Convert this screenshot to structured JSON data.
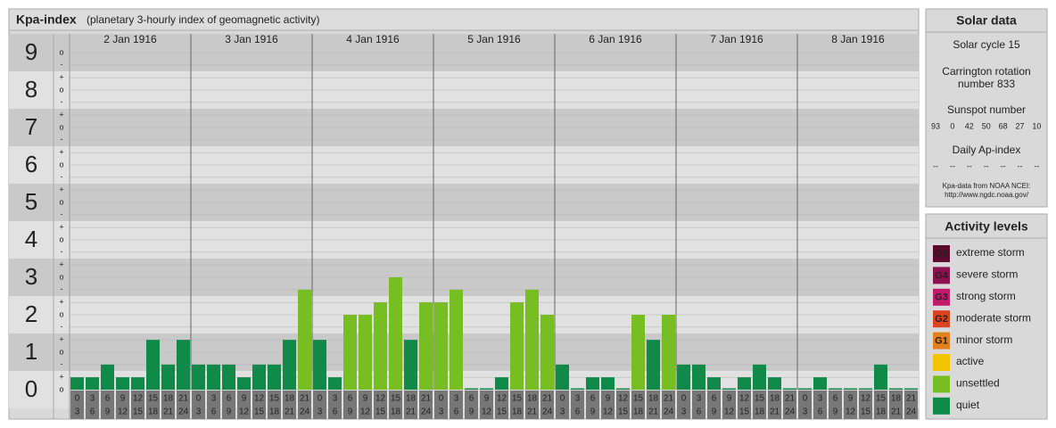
{
  "chart_data": {
    "type": "bar",
    "title": "Kpa-index",
    "subtitle": "(planetary 3-hourly index of geomagnetic activity)",
    "ylim": [
      -0.5,
      9.5
    ],
    "yticks": [
      0,
      1,
      2,
      3,
      4,
      5,
      6,
      7,
      8,
      9
    ],
    "minor_ticks": [
      {
        "value": 0,
        "label": "o"
      },
      {
        "value": 0.33,
        "label": "+"
      },
      {
        "value": 0.67,
        "label": "-"
      },
      {
        "value": 1,
        "label": "o"
      },
      {
        "value": 1.33,
        "label": "+"
      },
      {
        "value": 1.67,
        "label": "-"
      },
      {
        "value": 2,
        "label": "o"
      },
      {
        "value": 2.33,
        "label": "+"
      },
      {
        "value": 2.67,
        "label": "-"
      },
      {
        "value": 3,
        "label": "o"
      },
      {
        "value": 3.33,
        "label": "+"
      },
      {
        "value": 3.67,
        "label": "-"
      },
      {
        "value": 4,
        "label": "o"
      },
      {
        "value": 4.33,
        "label": "+"
      },
      {
        "value": 4.67,
        "label": "-"
      },
      {
        "value": 5,
        "label": "o"
      },
      {
        "value": 5.33,
        "label": "+"
      },
      {
        "value": 5.67,
        "label": "-"
      },
      {
        "value": 6,
        "label": "o"
      },
      {
        "value": 6.33,
        "label": "+"
      },
      {
        "value": 6.67,
        "label": "-"
      },
      {
        "value": 7,
        "label": "o"
      },
      {
        "value": 7.33,
        "label": "+"
      },
      {
        "value": 7.67,
        "label": "-"
      },
      {
        "value": 8,
        "label": "o"
      },
      {
        "value": 8.33,
        "label": "+"
      },
      {
        "value": 8.67,
        "label": "-"
      },
      {
        "value": 9,
        "label": "o"
      }
    ],
    "hours": [
      [
        "0",
        "3"
      ],
      [
        "3",
        "6"
      ],
      [
        "6",
        "9"
      ],
      [
        "9",
        "12"
      ],
      [
        "12",
        "15"
      ],
      [
        "15",
        "18"
      ],
      [
        "18",
        "21"
      ],
      [
        "21",
        "24"
      ]
    ],
    "days": [
      {
        "label": "2 Jan 1916",
        "values": [
          0.33,
          0.33,
          0.67,
          0.33,
          0.33,
          1.33,
          0.67,
          1.33
        ],
        "colors": [
          "#0f8a48",
          "#0f8a48",
          "#0f8a48",
          "#0f8a48",
          "#0f8a48",
          "#0f8a48",
          "#0f8a48",
          "#0f8a48"
        ]
      },
      {
        "label": "3 Jan 1916",
        "values": [
          0.67,
          0.67,
          0.67,
          0.33,
          0.67,
          0.67,
          1.33,
          2.67
        ],
        "colors": [
          "#0f8a48",
          "#0f8a48",
          "#0f8a48",
          "#0f8a48",
          "#0f8a48",
          "#0f8a48",
          "#0f8a48",
          "#77be22"
        ]
      },
      {
        "label": "4 Jan 1916",
        "values": [
          1.33,
          0.33,
          2,
          2,
          2.33,
          3,
          1.33,
          2.33
        ],
        "colors": [
          "#0f8a48",
          "#0f8a48",
          "#77be22",
          "#77be22",
          "#77be22",
          "#77be22",
          "#0f8a48",
          "#77be22"
        ]
      },
      {
        "label": "5 Jan 1916",
        "values": [
          2.33,
          2.67,
          0,
          0,
          0.33,
          2.33,
          2.67,
          2
        ],
        "colors": [
          "#77be22",
          "#77be22",
          "#0f8a48",
          "#0f8a48",
          "#0f8a48",
          "#77be22",
          "#77be22",
          "#77be22"
        ]
      },
      {
        "label": "6 Jan 1916",
        "values": [
          0.67,
          0,
          0.33,
          0.33,
          0,
          2,
          1.33,
          2
        ],
        "colors": [
          "#0f8a48",
          "#0f8a48",
          "#0f8a48",
          "#0f8a48",
          "#0f8a48",
          "#77be22",
          "#0f8a48",
          "#77be22"
        ]
      },
      {
        "label": "7 Jan 1916",
        "values": [
          0.67,
          0.67,
          0.33,
          0,
          0.33,
          0.67,
          0.33,
          0
        ],
        "colors": [
          "#0f8a48",
          "#0f8a48",
          "#0f8a48",
          "#0f8a48",
          "#0f8a48",
          "#0f8a48",
          "#0f8a48",
          "#0f8a48"
        ]
      },
      {
        "label": "8 Jan 1916",
        "values": [
          0,
          0.33,
          0,
          0,
          0,
          0.67,
          0,
          0
        ],
        "colors": [
          "#0f8a48",
          "#0f8a48",
          "#0f8a48",
          "#0f8a48",
          "#0f8a48",
          "#0f8a48",
          "#0f8a48",
          "#0f8a48"
        ]
      }
    ]
  },
  "solar_panel": {
    "title": "Solar data",
    "cycle": "Solar cycle 15",
    "rotation": [
      "Carrington rotation",
      "number 833"
    ],
    "sunspot_title": "Sunspot number",
    "sunspots": [
      "93",
      "0",
      "42",
      "50",
      "68",
      "27",
      "10"
    ],
    "ap_title": "Daily Ap-index",
    "ap_values": [
      "--",
      "--",
      "--",
      "--",
      "--",
      "--",
      "--"
    ],
    "source": [
      "Kpa-data from NOAA NCEI:",
      "http://www.ngdc.noaa.gov/"
    ]
  },
  "levels_panel": {
    "title": "Activity levels",
    "levels": [
      {
        "badge": "G5",
        "name": "extreme storm",
        "color": "#5c0a2e"
      },
      {
        "badge": "G4",
        "name": "severe storm",
        "color": "#8c1150"
      },
      {
        "badge": "G3",
        "name": "strong storm",
        "color": "#c21a6c"
      },
      {
        "badge": "G2",
        "name": "moderate storm",
        "color": "#d9431f"
      },
      {
        "badge": "G1",
        "name": "minor storm",
        "color": "#e2801c"
      },
      {
        "name": "active",
        "color": "#f5c400"
      },
      {
        "name": "unsettled",
        "color": "#77be22"
      },
      {
        "name": "quiet",
        "color": "#0f8a48"
      }
    ]
  }
}
